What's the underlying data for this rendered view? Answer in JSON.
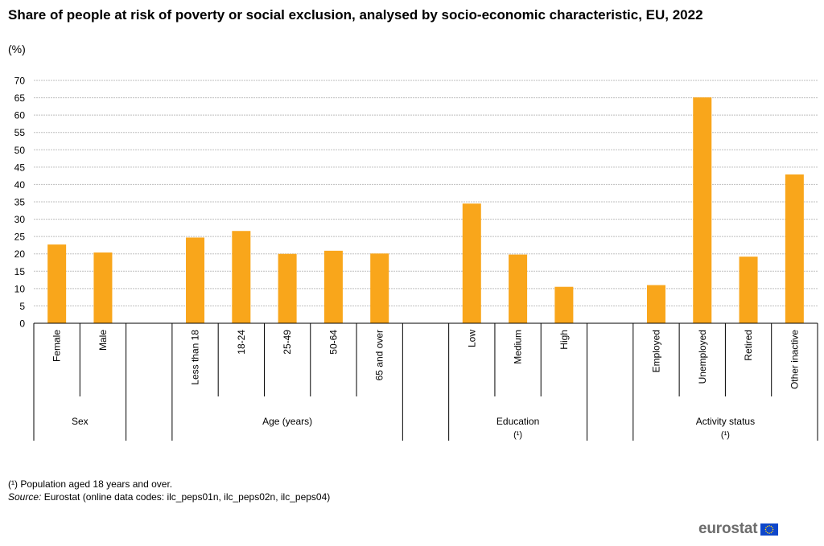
{
  "page": {
    "title": "Share of people at risk of poverty or social exclusion, analysed by socio-economic characteristic, EU, 2022",
    "unit": "(%)",
    "footnote": "(¹) Population aged 18 years and over.",
    "source_label": "Source:",
    "source_text": " Eurostat (online data codes: ilc_peps01n, ilc_peps02n, ilc_peps04)",
    "logo_text": "eurostat"
  },
  "colors": {
    "bar": "#f9a61b",
    "grid": "#bfbfbf",
    "axis": "#000000",
    "flag_blue": "#0e47cb",
    "flag_star": "#ffd617"
  },
  "chart_data": {
    "type": "bar",
    "title": "Share of people at risk of poverty or social exclusion, analysed by socio-economic characteristic, EU, 2022",
    "ylabel": "(%)",
    "ylim": [
      0,
      70
    ],
    "yticks": [
      0,
      5,
      10,
      15,
      20,
      25,
      30,
      35,
      40,
      45,
      50,
      55,
      60,
      65,
      70
    ],
    "grid": true,
    "categories": [
      "Female",
      "Male",
      "",
      "Less than 18",
      "18-24",
      "25-49",
      "50-64",
      "65 and over",
      "",
      "Low",
      "Medium",
      "High",
      "",
      "Employed",
      "Unemployed",
      "Retired",
      "Other inactive"
    ],
    "values": [
      22.7,
      20.4,
      null,
      24.7,
      26.6,
      20.0,
      20.9,
      20.1,
      null,
      34.5,
      19.8,
      10.5,
      null,
      11.0,
      65.1,
      19.2,
      42.9
    ],
    "groups": [
      {
        "label": "Sex",
        "note": "",
        "start": 0,
        "end": 1
      },
      {
        "label": "Age (years)",
        "note": "",
        "start": 3,
        "end": 7
      },
      {
        "label": "Education",
        "note": "(¹)",
        "start": 9,
        "end": 11
      },
      {
        "label": "Activity status",
        "note": "(¹)",
        "start": 13,
        "end": 16
      }
    ]
  }
}
